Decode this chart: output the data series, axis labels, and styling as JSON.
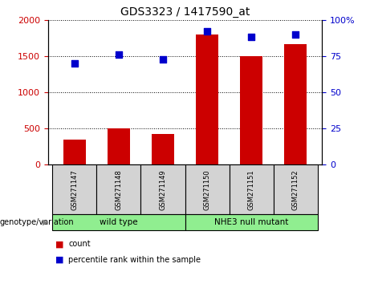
{
  "title": "GDS3323 / 1417590_at",
  "categories": [
    "GSM271147",
    "GSM271148",
    "GSM271149",
    "GSM271150",
    "GSM271151",
    "GSM271152"
  ],
  "bar_values": [
    350,
    500,
    420,
    1800,
    1500,
    1670
  ],
  "percentile_values": [
    70,
    76,
    73,
    92,
    88,
    90
  ],
  "bar_color": "#cc0000",
  "dot_color": "#0000cc",
  "left_ylim": [
    0,
    2000
  ],
  "right_ylim": [
    0,
    100
  ],
  "left_yticks": [
    0,
    500,
    1000,
    1500,
    2000
  ],
  "right_yticks": [
    0,
    25,
    50,
    75,
    100
  ],
  "right_yticklabels": [
    "0",
    "25",
    "50",
    "75",
    "100%"
  ],
  "group_label": "genotype/variation",
  "groups": [
    {
      "label": "wild type",
      "indices": [
        0,
        1,
        2
      ]
    },
    {
      "label": "NHE3 null mutant",
      "indices": [
        3,
        4,
        5
      ]
    }
  ],
  "legend_count_label": "count",
  "legend_percentile_label": "percentile rank within the sample",
  "grid_linestyle": "dotted",
  "gray_box_color": "#d3d3d3",
  "green_box_color": "#90ee90"
}
